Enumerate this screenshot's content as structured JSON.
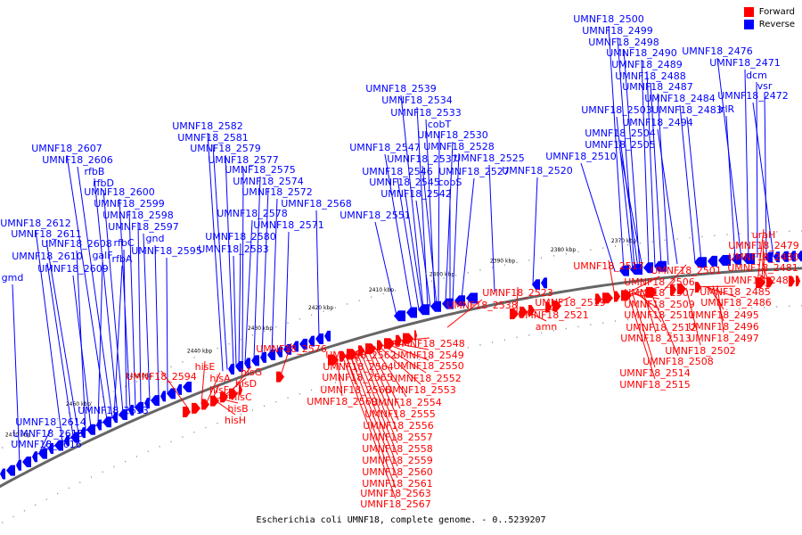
{
  "caption": "Escherichia coli UMNF18, complete genome. - 0..5239207",
  "legend": {
    "forward": {
      "label": "Forward",
      "color": "#ff0000"
    },
    "reverse": {
      "label": "Reverse",
      "color": "#0000ff"
    }
  },
  "colors": {
    "backbone": "#666666",
    "tick_text": "#000000"
  },
  "ticks": [
    "2370 kbp",
    "2380 kbp",
    "2390 kbp",
    "2400 kbp",
    "2410 kbp",
    "2420 kbp",
    "2430 kbp",
    "2440 kbp",
    "2450 kbp",
    "2460 kbp",
    "2470 kbp"
  ],
  "labels": {
    "reverse": [
      "UMNF18_2500",
      "UMNF18_2499",
      "UMNF18_2498",
      "UMNF18_2490",
      "UMNF18_2476",
      "UMNF18_2489",
      "UMNF18_2471",
      "UMNF18_2488",
      "dcm",
      "UMNF18_2487",
      "vsr",
      "UMNF18_2484",
      "UMNF18_2472",
      "UMNF18_2503",
      "UMNF18_2483",
      "irlR",
      "UMNF18_2494",
      "UMNF18_2504",
      "UMNF18_2505",
      "UMNF18_2510",
      "UMNF18_2539",
      "UMNF18_2534",
      "UMNF18_2533",
      "cobT",
      "UMNF18_2530",
      "UMNF18_2528",
      "UMNF18_2547",
      "UMNF18_2537",
      "UMNF18_2525",
      "UMNF18_2520",
      "UMNF18_2546",
      "UMNF18_2527",
      "UMNF18_2545",
      "cobS",
      "UMNF18_2542",
      "UMNF18_2551",
      "UMNF18_2582",
      "UMNF18_2581",
      "UMNF18_2579",
      "UMNF18_2577",
      "UMNF18_2575",
      "UMNF18_2574",
      "UMNF18_2572",
      "UMNF18_2568",
      "UMNF18_2578",
      "UMNF18_2571",
      "UMNF18_2580",
      "UMNF18_2583",
      "UMNF18_2607",
      "UMNF18_2606",
      "rfbB",
      "rfbD",
      "UMNF18_2600",
      "UMNF18_2599",
      "UMNF18_2598",
      "UMNF18_2612",
      "UMNF18_2597",
      "UMNF18_2611",
      "gnd",
      "UMNF18_2608",
      "rfbC",
      "UMNF18_2595",
      "UMNF18_2610",
      "galF",
      "rfbA",
      "UMNF18_2609",
      "gmd",
      "UMNF18_2613",
      "UMNF18_2614",
      "UMNF18_2615",
      "UMNF18_2616"
    ],
    "forward": [
      "uraH",
      "UMNF18_2479",
      "UMNF18_2480",
      "UMNF18_2481",
      "UMNF18_2482",
      "UMNF18_2517",
      "UMNF18_2501",
      "UMNF18_2506",
      "UMNF18_2507",
      "UMNF18_2485",
      "UMNF18_2509",
      "UMNF18_2486",
      "UMNF18_2511",
      "UMNF18_2495",
      "UMNF18_2512",
      "UMNF18_2496",
      "UMNF18_2513",
      "UMNF18_2497",
      "UMNF18_2502",
      "UMNF18_2508",
      "UMNF18_2514",
      "UMNF18_2515",
      "UMNF18_2523",
      "UMNF18_2519",
      "UMNF18_2538",
      "UMNF18_2521",
      "amn",
      "UMNF18_2548",
      "UMNF18_2576",
      "UMNF18_2562",
      "UMNF18_2549",
      "UMNF18_2564",
      "UMNF18_2550",
      "UMNF18_2565",
      "UMNF18_2552",
      "UMNF18_2566",
      "UMNF18_2553",
      "UMNF18_2569",
      "UMNF18_2554",
      "UMNF18_2555",
      "UMNF18_2556",
      "UMNF18_2557",
      "UMNF18_2558",
      "UMNF18_2559",
      "UMNF18_2560",
      "UMNF18_2561",
      "UMNF18_2563",
      "UMNF18_2567",
      "UMNF18_2594",
      "hisE",
      "hisA",
      "hisG",
      "hisF",
      "hisD",
      "hisC",
      "hisB",
      "hisH"
    ]
  }
}
